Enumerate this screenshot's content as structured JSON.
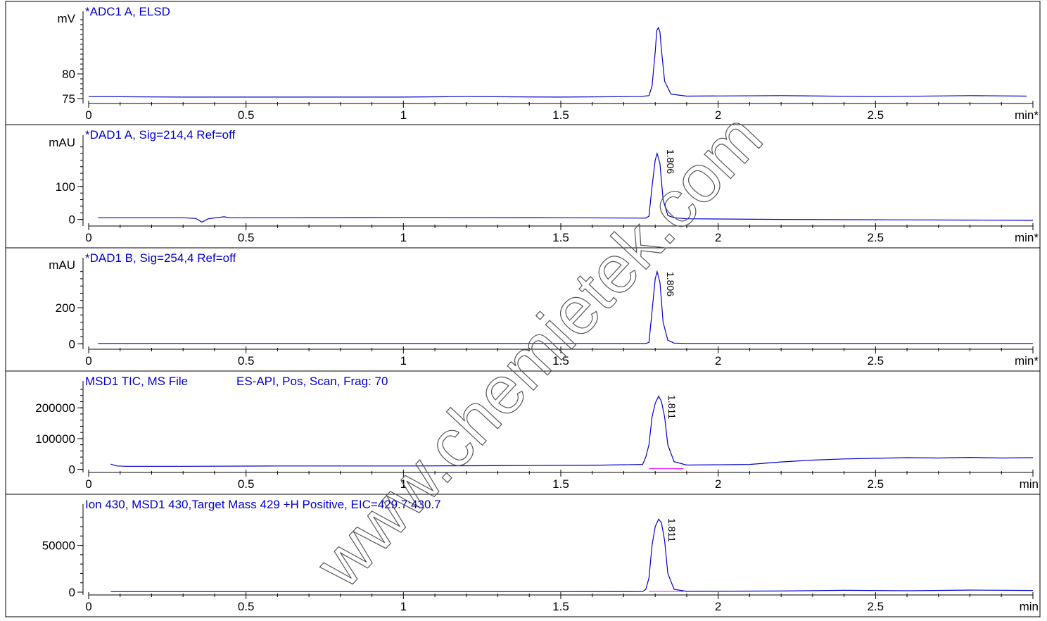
{
  "watermark": "www.chemietek.com",
  "chart_data": [
    {
      "type": "line",
      "title": "*ADC1 A, ELSD",
      "ylabel": "mV",
      "x_unit": "min*",
      "xlim": [
        0,
        3.0
      ],
      "ylim": [
        74,
        91
      ],
      "yticks": [
        75,
        80
      ],
      "xticks": [
        0,
        0.5,
        1,
        1.5,
        2,
        2.5
      ],
      "color": "#0000cc",
      "series": [
        {
          "x": [
            0,
            0.3,
            0.6,
            1.0,
            1.2,
            1.5,
            1.75,
            1.78,
            1.79,
            1.8,
            1.805,
            1.81,
            1.815,
            1.82,
            1.83,
            1.85,
            1.9,
            2.2,
            2.5,
            2.8,
            2.98
          ],
          "values": [
            75.4,
            75.3,
            75.3,
            75.3,
            75.4,
            75.3,
            75.4,
            75.6,
            77.5,
            84.5,
            88.8,
            89.4,
            88.5,
            84.8,
            78.5,
            75.9,
            75.5,
            75.6,
            75.4,
            75.6,
            75.5
          ]
        }
      ]
    },
    {
      "type": "line",
      "title": "*DAD1 A, Sig=214,4 Ref=off",
      "ylabel": "mAU",
      "x_unit": "min*",
      "xlim": [
        0,
        3.0
      ],
      "ylim": [
        -20,
        230
      ],
      "yticks": [
        0,
        100
      ],
      "xticks": [
        0,
        0.5,
        1,
        1.5,
        2,
        2.5
      ],
      "color": "#0000cc",
      "peak_labels": [
        {
          "x": 1.806,
          "text": "1.806"
        }
      ],
      "series": [
        {
          "x": [
            0.03,
            0.3,
            0.34,
            0.36,
            0.38,
            0.43,
            0.45,
            0.6,
            1.0,
            1.5,
            1.77,
            1.78,
            1.79,
            1.8,
            1.806,
            1.815,
            1.825,
            1.84,
            1.86,
            1.9,
            2.2,
            2.5,
            2.8,
            3.0
          ],
          "values": [
            5,
            5,
            3,
            -8,
            2,
            8,
            5,
            5,
            6,
            5,
            4,
            10,
            100,
            180,
            200,
            170,
            60,
            12,
            5,
            2,
            0,
            -1,
            -2,
            -3
          ]
        }
      ]
    },
    {
      "type": "line",
      "title": "*DAD1 B, Sig=254,4 Ref=off",
      "ylabel": "mAU",
      "x_unit": "min*",
      "xlim": [
        0,
        3.0
      ],
      "ylim": [
        -30,
        430
      ],
      "yticks": [
        0,
        200
      ],
      "xticks": [
        0,
        0.5,
        1,
        1.5,
        2,
        2.5
      ],
      "color": "#0000cc",
      "peak_labels": [
        {
          "x": 1.806,
          "text": "1.806"
        }
      ],
      "series": [
        {
          "x": [
            0.03,
            0.5,
            1.0,
            1.5,
            1.77,
            1.78,
            1.79,
            1.8,
            1.806,
            1.815,
            1.825,
            1.84,
            1.86,
            1.9,
            2.5,
            3.0
          ],
          "values": [
            2,
            2,
            2,
            2,
            2,
            8,
            180,
            360,
            400,
            340,
            120,
            20,
            4,
            2,
            2,
            2
          ]
        }
      ]
    },
    {
      "type": "line",
      "title": "MSD1 TIC, MS File",
      "subtitle": "ES-API, Pos, Scan, Frag: 70",
      "ylabel": "",
      "x_unit": "min",
      "xlim": [
        0,
        3.0
      ],
      "ylim": [
        -10000,
        260000
      ],
      "yticks": [
        0,
        100000,
        200000
      ],
      "xticks": [
        0,
        0.5,
        1,
        1.5,
        2,
        2.5
      ],
      "color": "#0000cc",
      "baseline_color": "#ff00ff",
      "baseline_x": [
        1.78,
        1.89
      ],
      "peak_labels": [
        {
          "x": 1.811,
          "text": "1.811"
        }
      ],
      "series": [
        {
          "x": [
            0.07,
            0.09,
            0.12,
            0.3,
            0.6,
            1.0,
            1.3,
            1.6,
            1.76,
            1.77,
            1.78,
            1.79,
            1.8,
            1.811,
            1.82,
            1.83,
            1.84,
            1.86,
            1.9,
            2.0,
            2.1,
            2.2,
            2.3,
            2.4,
            2.5,
            2.6,
            2.7,
            2.8,
            2.9,
            3.0
          ],
          "values": [
            17000,
            11000,
            10000,
            10000,
            11000,
            11000,
            12000,
            13000,
            16000,
            40000,
            80000,
            170000,
            215000,
            238000,
            220000,
            170000,
            80000,
            25000,
            14000,
            15000,
            16000,
            24000,
            30000,
            34000,
            36000,
            38000,
            37000,
            39000,
            37000,
            38000
          ]
        }
      ]
    },
    {
      "type": "line",
      "title": "Ion 430, MSD1 430,Target Mass 429 +H Positive, EIC=429.7:430.7",
      "ylabel": "",
      "x_unit": "min",
      "xlim": [
        0,
        3.0
      ],
      "ylim": [
        -3000,
        85000
      ],
      "yticks": [
        0,
        50000
      ],
      "xticks": [
        0,
        0.5,
        1,
        1.5,
        2,
        2.5
      ],
      "color": "#0000cc",
      "baseline_color": "#ff00ff",
      "baseline_x": [
        1.78,
        1.89
      ],
      "peak_labels": [
        {
          "x": 1.811,
          "text": "1.811"
        }
      ],
      "series": [
        {
          "x": [
            0.07,
            0.5,
            1.0,
            1.5,
            1.76,
            1.77,
            1.78,
            1.79,
            1.8,
            1.811,
            1.82,
            1.83,
            1.84,
            1.86,
            1.9,
            2.2,
            2.4,
            2.6,
            2.8,
            3.0
          ],
          "values": [
            500,
            500,
            500,
            500,
            600,
            3000,
            15000,
            50000,
            70000,
            78000,
            74000,
            55000,
            20000,
            3000,
            800,
            1200,
            2000,
            1500,
            2200,
            1800
          ]
        }
      ]
    }
  ]
}
